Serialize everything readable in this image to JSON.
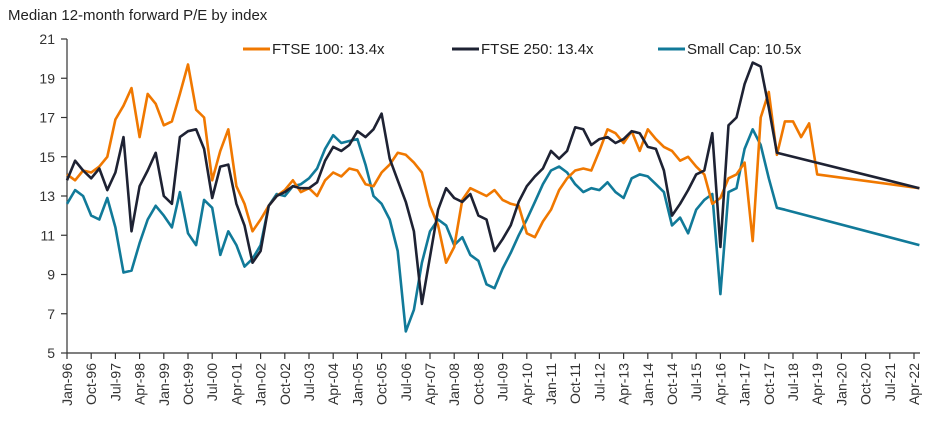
{
  "chart_data": {
    "type": "line",
    "title": "Median 12-month forward P/E by index",
    "xlabel": "",
    "ylabel": "",
    "ylim": [
      5,
      21
    ],
    "yticks": [
      5,
      7,
      9,
      11,
      13,
      15,
      17,
      19,
      21
    ],
    "grid": false,
    "legend_position": "top",
    "xtick_labels": [
      "Jan-96",
      "Oct-96",
      "Jul-97",
      "Apr-98",
      "Jan-99",
      "Oct-99",
      "Jul-00",
      "Apr-01",
      "Jan-02",
      "Oct-02",
      "Jul-03",
      "Apr-04",
      "Jan-05",
      "Oct-05",
      "Jul-06",
      "Apr-07",
      "Jan-08",
      "Oct-08",
      "Jul-09",
      "Apr-10",
      "Jan-11",
      "Oct-11",
      "Jul-12",
      "Apr-13",
      "Jan-14",
      "Oct-14",
      "Jul-15",
      "Apr-16",
      "Jan-17",
      "Oct-17",
      "Jul-18",
      "Apr-19",
      "Jan-20",
      "Oct-20",
      "Jul-21",
      "Apr-22"
    ],
    "x_frequency": "quarterly",
    "x_start": "Jan-96",
    "x_end": "Jun-22",
    "series": [
      {
        "name": "FTSE 100: 13.4x",
        "color": "#F07800",
        "values": [
          14.1,
          13.8,
          14.3,
          14.2,
          14.5,
          15.0,
          16.9,
          17.6,
          18.5,
          16.0,
          18.2,
          17.7,
          16.6,
          16.8,
          18.2,
          19.7,
          17.4,
          17.0,
          13.8,
          15.3,
          16.4,
          13.5,
          12.6,
          11.2,
          11.8,
          12.5,
          13.0,
          13.3,
          13.8,
          13.2,
          13.4,
          13.0,
          13.8,
          14.2,
          14.0,
          14.4,
          14.3,
          13.6,
          13.5,
          14.2,
          14.6,
          15.2,
          15.1,
          14.7,
          14.2,
          12.5,
          11.5,
          9.6,
          10.4,
          12.8,
          13.4,
          13.2,
          13.0,
          13.3,
          12.8,
          12.6,
          12.5,
          11.1,
          10.9,
          11.7,
          12.3,
          13.3,
          13.9,
          14.3,
          14.4,
          14.3,
          15.3,
          16.4,
          16.2,
          15.7,
          16.3,
          15.3,
          16.4,
          15.9,
          15.5,
          15.3,
          14.8,
          15.0,
          14.5,
          14.1,
          12.6,
          12.9,
          13.9,
          14.1,
          14.7,
          10.7,
          17.0,
          18.3,
          15.1,
          16.8,
          16.8,
          16.0,
          16.7,
          14.1,
          13.4
        ]
      },
      {
        "name": "FTSE 250: 13.4x",
        "color": "#1E2233",
        "values": [
          13.8,
          14.8,
          14.3,
          13.9,
          14.4,
          13.3,
          14.2,
          16.0,
          11.2,
          13.5,
          14.3,
          15.2,
          13.0,
          12.6,
          16.0,
          16.3,
          16.4,
          15.4,
          12.9,
          14.5,
          14.6,
          12.6,
          11.5,
          9.6,
          10.2,
          12.5,
          13.0,
          13.2,
          13.5,
          13.4,
          13.4,
          13.7,
          14.8,
          15.5,
          15.3,
          15.6,
          16.3,
          16.0,
          16.4,
          17.2,
          14.9,
          13.8,
          12.7,
          11.2,
          7.5,
          9.9,
          12.3,
          13.4,
          12.9,
          12.7,
          13.1,
          12.0,
          11.8,
          10.2,
          10.8,
          11.5,
          12.7,
          13.5,
          14.0,
          14.4,
          15.3,
          14.9,
          15.3,
          16.5,
          16.4,
          15.6,
          15.9,
          16.0,
          15.7,
          15.9,
          16.3,
          16.2,
          15.5,
          15.4,
          14.3,
          12.0,
          12.6,
          13.3,
          14.1,
          14.3,
          16.2,
          10.4,
          16.6,
          17.0,
          18.7,
          19.8,
          19.6,
          17.5,
          15.2,
          15.1,
          13.4
        ]
      },
      {
        "name": "Small Cap: 10.5x",
        "color": "#117A99",
        "values": [
          12.6,
          13.3,
          13.0,
          12.0,
          11.8,
          12.9,
          11.4,
          9.1,
          9.2,
          10.6,
          11.8,
          12.5,
          12.0,
          11.4,
          13.2,
          11.1,
          10.5,
          12.8,
          12.4,
          10.0,
          11.2,
          10.5,
          9.4,
          9.8,
          10.5,
          12.5,
          13.1,
          13.0,
          13.5,
          13.6,
          13.9,
          14.4,
          15.4,
          16.1,
          15.7,
          15.8,
          15.9,
          14.6,
          13.0,
          12.6,
          11.8,
          10.2,
          6.1,
          7.2,
          9.6,
          11.2,
          11.8,
          11.5,
          10.5,
          10.9,
          10.0,
          9.7,
          8.5,
          8.3,
          9.3,
          10.1,
          11.0,
          11.8,
          12.7,
          13.6,
          14.3,
          14.5,
          14.2,
          13.6,
          13.2,
          13.4,
          13.3,
          13.7,
          13.2,
          12.9,
          13.9,
          14.1,
          14.0,
          13.6,
          13.2,
          11.5,
          11.9,
          11.1,
          12.3,
          12.8,
          13.1,
          8.0,
          13.2,
          13.4,
          15.4,
          16.4,
          15.6,
          13.9,
          12.4,
          12.3,
          10.5
        ]
      }
    ]
  }
}
